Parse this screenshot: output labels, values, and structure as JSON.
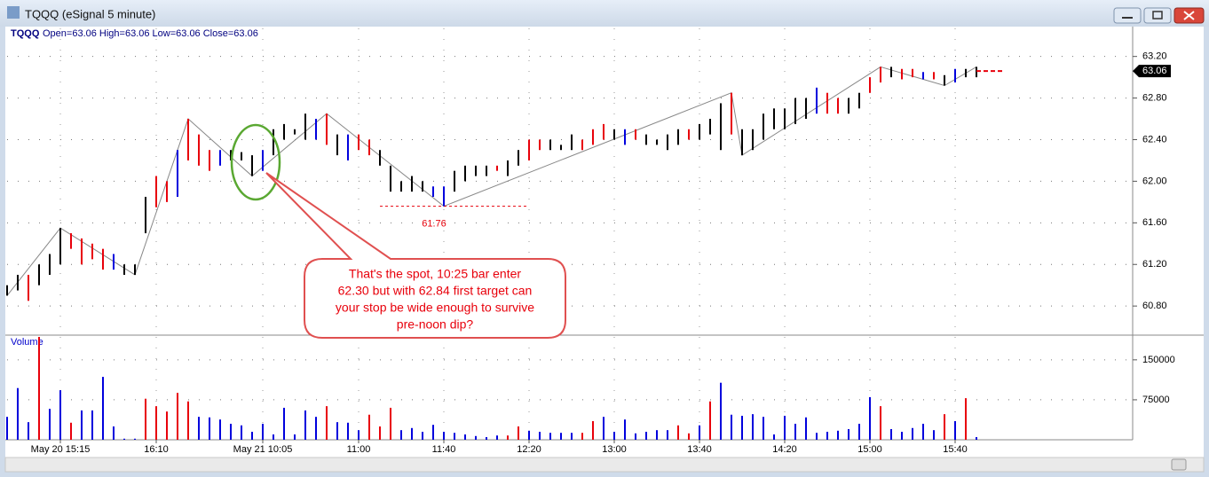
{
  "window": {
    "title": "TQQQ (eSignal 5 minute)"
  },
  "chart_data": {
    "type": "ohlc",
    "symbol": "TQQQ",
    "quote": "Open=63.06 High=63.06 Low=63.06 Close=63.06",
    "categories": [
      null,
      null,
      null,
      null,
      null,
      "May 20 15:15",
      null,
      null,
      null,
      null,
      null,
      null,
      null,
      null,
      "16:10",
      null,
      null,
      null,
      null,
      null,
      null,
      null,
      null,
      null,
      "May 21 10:05",
      null,
      null,
      null,
      null,
      null,
      null,
      null,
      null,
      "11:00",
      null,
      null,
      null,
      null,
      null,
      null,
      null,
      "11:40",
      null,
      null,
      null,
      null,
      null,
      null,
      null,
      "12:20",
      null,
      null,
      null,
      null,
      null,
      null,
      null,
      "13:00",
      null,
      null,
      null,
      null,
      null,
      null,
      null,
      "13:40",
      null,
      null,
      null,
      null,
      null,
      null,
      null,
      "14:20",
      null,
      null,
      null,
      null,
      null,
      null,
      null,
      "15:00",
      null,
      null,
      null,
      null,
      null,
      null,
      null,
      "15:40",
      null,
      null
    ],
    "high": [
      61.0,
      61.1,
      61.1,
      61.2,
      61.3,
      61.55,
      61.5,
      61.45,
      61.4,
      61.35,
      61.3,
      61.2,
      61.2,
      61.85,
      62.05,
      62.0,
      62.3,
      62.6,
      62.45,
      62.3,
      62.3,
      62.3,
      62.28,
      62.25,
      62.3,
      62.5,
      62.55,
      62.5,
      62.65,
      62.6,
      62.65,
      62.45,
      62.45,
      62.45,
      62.4,
      62.3,
      62.15,
      62.0,
      62.05,
      62.0,
      61.95,
      61.95,
      62.1,
      62.15,
      62.15,
      62.15,
      62.15,
      62.2,
      62.3,
      62.4,
      62.4,
      62.4,
      62.35,
      62.45,
      62.4,
      62.5,
      62.55,
      62.5,
      62.5,
      62.5,
      62.45,
      62.4,
      62.45,
      62.5,
      62.5,
      62.55,
      62.6,
      62.75,
      62.85,
      62.5,
      62.5,
      62.65,
      62.7,
      62.7,
      62.8,
      62.8,
      62.9,
      62.85,
      62.8,
      62.8,
      62.85,
      63.0,
      63.1,
      63.1,
      63.08,
      63.08,
      63.05,
      63.05,
      63.02,
      63.08,
      63.08,
      63.1
    ],
    "low": [
      60.9,
      60.95,
      60.85,
      61.0,
      61.1,
      61.2,
      61.35,
      61.2,
      61.25,
      61.15,
      61.15,
      61.1,
      61.1,
      61.5,
      61.75,
      61.8,
      61.85,
      62.2,
      62.15,
      62.1,
      62.15,
      62.2,
      62.2,
      62.05,
      62.1,
      62.25,
      62.4,
      62.45,
      62.4,
      62.4,
      62.35,
      62.25,
      62.2,
      62.3,
      62.25,
      62.15,
      61.9,
      61.9,
      61.9,
      61.9,
      61.85,
      61.76,
      61.9,
      62.0,
      62.05,
      62.05,
      62.1,
      62.05,
      62.15,
      62.2,
      62.3,
      62.3,
      62.3,
      62.3,
      62.3,
      62.35,
      62.4,
      62.4,
      62.35,
      62.4,
      62.35,
      62.35,
      62.3,
      62.35,
      62.4,
      62.4,
      62.45,
      62.3,
      62.45,
      62.25,
      62.3,
      62.4,
      62.5,
      62.5,
      62.55,
      62.6,
      62.65,
      62.65,
      62.65,
      62.65,
      62.7,
      62.85,
      62.95,
      63.0,
      62.98,
      63.0,
      62.98,
      62.98,
      62.92,
      62.95,
      63.0,
      63.0
    ],
    "colors": [
      "k",
      "k",
      "r",
      "k",
      "k",
      "k",
      "r",
      "r",
      "r",
      "r",
      "b",
      "k",
      "k",
      "k",
      "r",
      "r",
      "b",
      "r",
      "r",
      "r",
      "b",
      "k",
      "k",
      "k",
      "b",
      "k",
      "k",
      "k",
      "k",
      "b",
      "r",
      "k",
      "b",
      "r",
      "r",
      "k",
      "k",
      "k",
      "k",
      "k",
      "b",
      "b",
      "k",
      "k",
      "k",
      "k",
      "r",
      "k",
      "k",
      "r",
      "r",
      "k",
      "k",
      "k",
      "r",
      "r",
      "r",
      "k",
      "b",
      "r",
      "k",
      "k",
      "k",
      "k",
      "r",
      "k",
      "k",
      "k",
      "r",
      "k",
      "k",
      "k",
      "k",
      "k",
      "k",
      "k",
      "b",
      "r",
      "r",
      "k",
      "k",
      "r",
      "r",
      "k",
      "r",
      "r",
      "b",
      "r",
      "k",
      "b",
      "k",
      "k"
    ],
    "palette": {
      "k": "#000000",
      "r": "#e8000b",
      "b": "#0000dd"
    },
    "ylim": [
      60.52,
      63.47
    ],
    "yticks": [
      {
        "value": 60.8,
        "label": "60.80"
      },
      {
        "value": 61.2,
        "label": "61.20"
      },
      {
        "value": 61.6,
        "label": "61.60"
      },
      {
        "value": 62.0,
        "label": "62.00"
      },
      {
        "value": 62.4,
        "label": "62.40"
      },
      {
        "value": 62.8,
        "label": "62.80"
      },
      {
        "value": 63.2,
        "label": "63.20"
      }
    ],
    "grid": true,
    "last_price": {
      "value": 63.06,
      "label": "63.06"
    },
    "zigzag": {
      "x": [
        0,
        5,
        12,
        17,
        23,
        30,
        41,
        68,
        69,
        82,
        88,
        91
      ],
      "values": [
        60.9,
        61.55,
        61.1,
        62.6,
        62.05,
        62.65,
        61.76,
        62.85,
        62.25,
        63.1,
        62.92,
        63.1
      ]
    },
    "support": {
      "value": 61.76,
      "label": "61.76"
    },
    "annotation": [
      "That's the spot, 10:25 bar enter",
      "62.30 but with 62.84 first target can",
      "your stop be wide enough to survive",
      "pre-noon dip?"
    ],
    "volume": {
      "title": "Volume",
      "values": [
        43000,
        97000,
        33000,
        193000,
        58000,
        93000,
        32000,
        55000,
        55000,
        118000,
        25000,
        2000,
        2000,
        77000,
        63000,
        53000,
        88000,
        72000,
        43000,
        42000,
        38000,
        30000,
        27000,
        15000,
        30000,
        10000,
        60000,
        10000,
        55000,
        43000,
        63000,
        33000,
        32000,
        18000,
        47000,
        25000,
        60000,
        18000,
        22000,
        15000,
        28000,
        15000,
        13000,
        10000,
        7000,
        5000,
        8000,
        8000,
        25000,
        17000,
        15000,
        13000,
        13000,
        13000,
        13000,
        35000,
        43000,
        15000,
        38000,
        12000,
        15000,
        18000,
        18000,
        27000,
        12000,
        27000,
        72000,
        107000,
        47000,
        45000,
        48000,
        43000,
        10000,
        45000,
        30000,
        42000,
        13000,
        15000,
        17000,
        20000,
        30000,
        80000,
        63000,
        20000,
        15000,
        22000,
        30000,
        18000,
        48000,
        35000,
        78000,
        5000
      ],
      "colors": [
        "b",
        "b",
        "b",
        "r",
        "b",
        "b",
        "r",
        "b",
        "b",
        "b",
        "b",
        "b",
        "b",
        "r",
        "r",
        "r",
        "r",
        "r",
        "b",
        "b",
        "b",
        "b",
        "b",
        "b",
        "b",
        "b",
        "b",
        "b",
        "b",
        "b",
        "r",
        "b",
        "b",
        "b",
        "r",
        "r",
        "r",
        "b",
        "b",
        "b",
        "b",
        "b",
        "b",
        "b",
        "b",
        "b",
        "b",
        "r",
        "r",
        "b",
        "b",
        "b",
        "b",
        "b",
        "r",
        "r",
        "b",
        "b",
        "b",
        "b",
        "b",
        "b",
        "b",
        "r",
        "r",
        "b",
        "r",
        "b",
        "b",
        "b",
        "b",
        "b",
        "b",
        "b",
        "b",
        "b",
        "b",
        "b",
        "b",
        "b",
        "b",
        "b",
        "r",
        "b",
        "b",
        "b",
        "b",
        "b",
        "r",
        "b",
        "r",
        "b"
      ],
      "ylim": [
        0,
        193000
      ],
      "yticks": [
        75000,
        150000
      ]
    }
  }
}
